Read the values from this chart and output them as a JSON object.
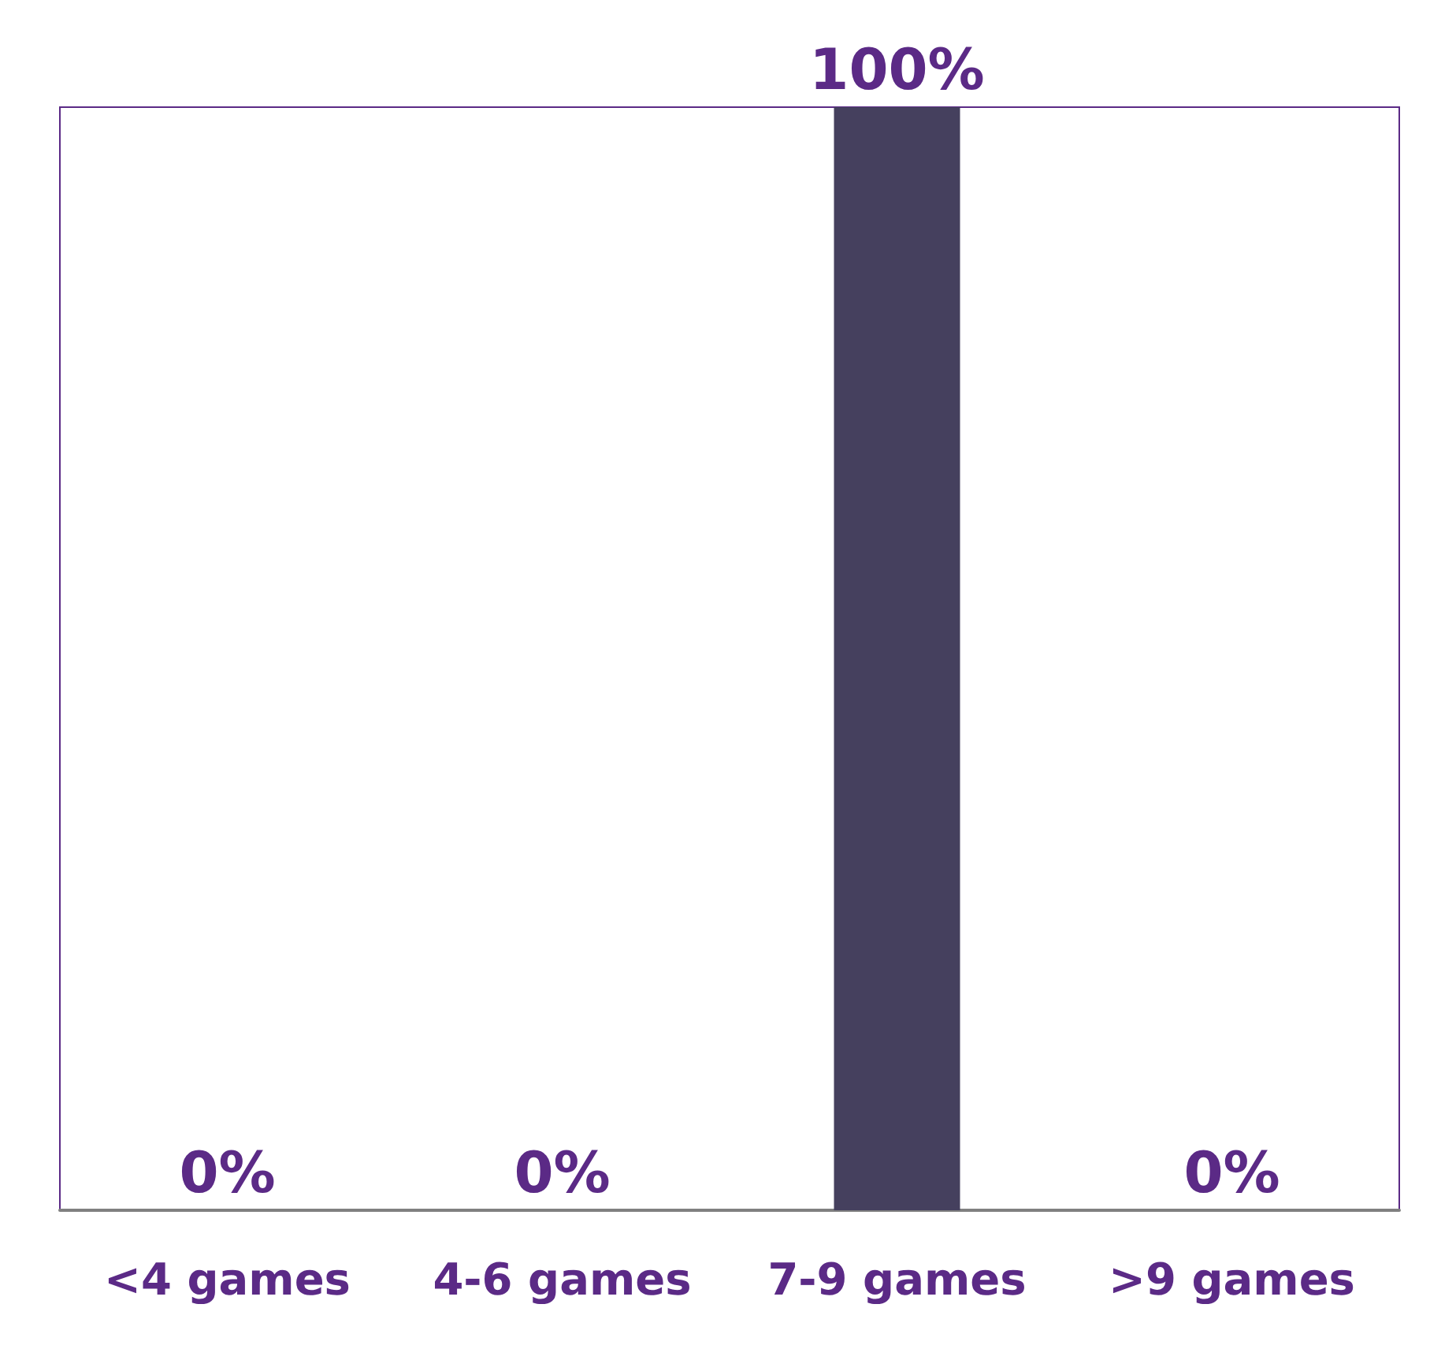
{
  "chart_data": {
    "type": "bar",
    "categories": [
      "<4 games",
      "4-6 games",
      "7-9 games",
      ">9 games"
    ],
    "values": [
      0,
      0,
      100,
      0
    ],
    "value_labels": [
      "0%",
      "0%",
      "100%",
      "0%"
    ],
    "color": "#45405e",
    "grid": false
  }
}
